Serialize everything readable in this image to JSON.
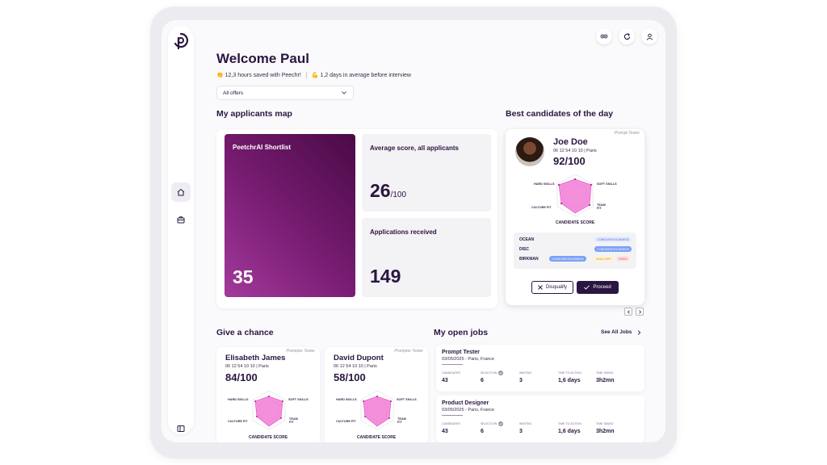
{
  "header": {
    "welcome": "Welcome Paul",
    "stat_hours": "👏 12,3 hours saved with Peechr!",
    "stat_days": "💪 1,2 days in average before interview",
    "filter_value": "All offers"
  },
  "sections": {
    "map_title": "My applicants map",
    "best_title": "Best candidates of the day",
    "chance_title": "Give a chance",
    "jobs_title": "My open jobs",
    "see_all": "See All Jobs"
  },
  "map": {
    "shortlist_label": "PeetchrAI Shortlist",
    "shortlist_value": "35",
    "avg_label": "Average score, all applicants",
    "avg_value": "26",
    "avg_suffix": "/100",
    "apps_label": "Applications received",
    "apps_value": "149"
  },
  "best_candidate": {
    "tag": "Prompt Tester",
    "name": "Joe Doe",
    "info": "06 12 54 10 10 | Paris",
    "score": "92/100",
    "radar_labels": {
      "hard": "HARD SKILLS",
      "soft": "SOFT SKILLS",
      "team": "TEAM FIT",
      "culture": "CULTURE FIT"
    },
    "radar_title": "CANDIDATE SCORE",
    "traits": [
      {
        "label": "OCEAN",
        "pills": [
          "CONSCIENTIOUSNESS"
        ]
      },
      {
        "label": "DISC",
        "pills": [
          "CONSCIENTIOUSNESS"
        ]
      },
      {
        "label": "BIRKMAN",
        "pills": [
          "CONSCIENTIOUSNESS",
          "ANALYSER",
          "RISKS"
        ]
      }
    ],
    "disqualify_label": "Disqualify",
    "proceed_label": "Proceed"
  },
  "chance_candidates": [
    {
      "tag": "Prompter Tester",
      "name": "Elisabeth James",
      "info": "06 12 54 10 10 | Paris",
      "score": "84/100"
    },
    {
      "tag": "Prompter Tester",
      "name": "David Dupont",
      "info": "06 12 54 10 10 | Paris",
      "score": "58/100"
    }
  ],
  "radar_labels_small": {
    "hard": "HARD SKILLS",
    "soft": "SOFT SKILLS",
    "team": "TEAM FIT",
    "culture": "CULTURE FIT",
    "title": "CANDIDATE SCORE"
  },
  "job_columns": {
    "candidates": "CANDIDATES",
    "selection": "SELECTION",
    "waiting": "WAITING",
    "tta": "TIME TO ACTION",
    "saved": "TIME SAVED"
  },
  "jobs": [
    {
      "title": "Prompt Tester",
      "date": "03/05/2025 - Paris, France",
      "candidates": "43",
      "selection": "6",
      "waiting": "3",
      "tta": "1,6 days",
      "saved": "3h2mn"
    },
    {
      "title": "Product Designer",
      "date": "03/05/2025 - Paris, France",
      "candidates": "43",
      "selection": "6",
      "waiting": "3",
      "tta": "1,6 days",
      "saved": "3h2mn"
    }
  ],
  "colors": {
    "brand": "#2a1640",
    "accent": "#8a2a84",
    "radar_fill": "#f06ad0"
  }
}
